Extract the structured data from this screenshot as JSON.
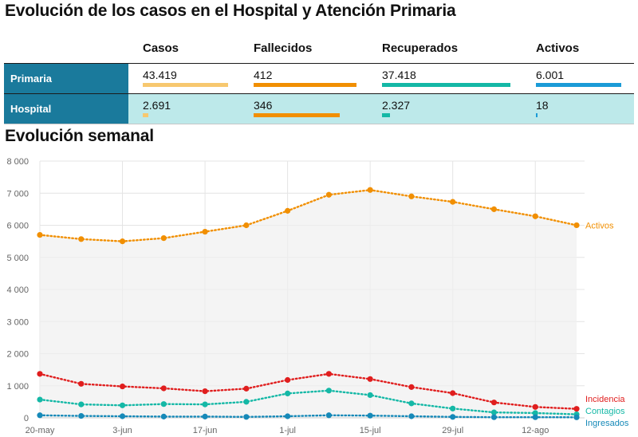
{
  "title": "Evolución de los casos en el Hospital y Atención Primaria",
  "table": {
    "columns": [
      "Casos",
      "Fallecidos",
      "Recuperados",
      "Activos"
    ],
    "column_colors": [
      "#f7c86f",
      "#f18f01",
      "#14b8a6",
      "#1a9bd7"
    ],
    "rows": [
      {
        "name": "Primaria",
        "values": [
          "43.419",
          "412",
          "37.418",
          "6.001"
        ],
        "numeric": [
          43419,
          412,
          37418,
          6001
        ]
      },
      {
        "name": "Hospital",
        "values": [
          "2.691",
          "346",
          "2.327",
          "18"
        ],
        "numeric": [
          2691,
          346,
          2327,
          18
        ]
      }
    ]
  },
  "chart_title": "Evolución semanal",
  "chart_data": {
    "type": "line",
    "x": [
      "20-may",
      "27-may",
      "3-jun",
      "10-jun",
      "17-jun",
      "24-jun",
      "1-jul",
      "8-jul",
      "15-jul",
      "22-jul",
      "29-jul",
      "5-ago",
      "12-ago",
      "19-ago"
    ],
    "x_tick_labels": [
      "20-may",
      "3-jun",
      "17-jun",
      "1-jul",
      "15-jul",
      "29-jul",
      "12-ago"
    ],
    "y_ticks": [
      "0",
      "1 000",
      "2 000",
      "3 000",
      "4 000",
      "5 000",
      "6 000",
      "7 000",
      "8 000"
    ],
    "ylim": [
      0,
      8000
    ],
    "grid": true,
    "series": [
      {
        "name": "Activos",
        "color": "#f18f01",
        "area": true,
        "values": [
          5700,
          5570,
          5500,
          5600,
          5800,
          6000,
          6450,
          6950,
          7100,
          6900,
          6730,
          6500,
          6280,
          6001
        ]
      },
      {
        "name": "Incidencia",
        "color": "#e01e1e",
        "values": [
          1370,
          1060,
          980,
          920,
          830,
          910,
          1180,
          1370,
          1210,
          960,
          770,
          480,
          340,
          280
        ]
      },
      {
        "name": "Contagios",
        "color": "#14b8a6",
        "values": [
          570,
          420,
          390,
          430,
          420,
          500,
          760,
          850,
          710,
          450,
          290,
          170,
          150,
          110
        ]
      },
      {
        "name": "Ingresados",
        "color": "#1689b8",
        "values": [
          80,
          60,
          50,
          40,
          40,
          30,
          50,
          80,
          70,
          50,
          30,
          20,
          20,
          18
        ]
      }
    ]
  }
}
